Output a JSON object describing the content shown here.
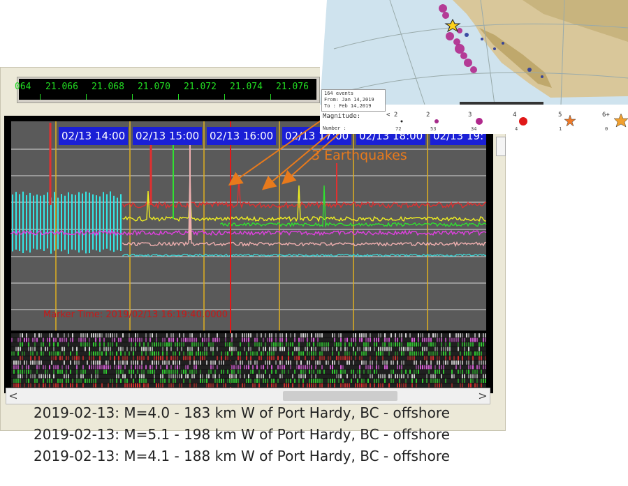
{
  "ruler": {
    "ticks": [
      "064",
      "21.066",
      "21.068",
      "21.070",
      "21.072",
      "21.074",
      "21.076"
    ]
  },
  "time_labels": [
    "02/13 14:00",
    "02/13 15:00",
    "02/13 16:00",
    "02/13 17:00",
    "02/13 18:00",
    "02/13 19:"
  ],
  "annotation": "3 Earthquakes",
  "marker_time": "Marker Time: 2019/02/13 16:19:40.0000",
  "scrollbar": {
    "left_arrow": "<",
    "right_arrow": ">"
  },
  "events": [
    "2019-02-13: M=4.0 - 183 km W of Port Hardy, BC - offshore",
    "2019-02-13: M=5.1 - 198 km W of Port Hardy, BC - offshore",
    "2019-02-13: M=4.1 - 188 km W of Port Hardy, BC - offshore"
  ],
  "map_legend": {
    "line1": "164 events",
    "line2": "From: Jan 14,2019",
    "line3": "To  : Feb 14,2019",
    "magnitude_label": "Magnitude:",
    "number_label": "Number    :",
    "magnitudes": [
      "< 2",
      "2",
      "3",
      "4",
      "5",
      "6+"
    ],
    "counts": [
      "72",
      "53",
      "34",
      "4",
      "1",
      "0"
    ]
  },
  "colors": {
    "time_label_bg": "#1a1fd6",
    "annotation": "#e87a1c",
    "marker": "#c81818",
    "ruler_text": "#22dd22"
  }
}
